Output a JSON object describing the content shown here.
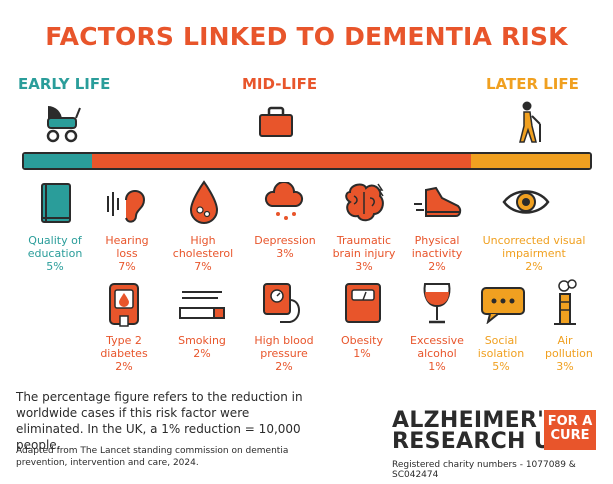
{
  "title": "FACTORS LINKED TO DEMENTIA RISK",
  "stages": {
    "early": "EARLY LIFE",
    "mid": "MID-LIFE",
    "late": "LATER LIFE"
  },
  "colors": {
    "teal": "#2a9d9a",
    "orange": "#e8552b",
    "amber": "#f0a020",
    "dark": "#2b2b2b"
  },
  "timeline": {
    "early_fraction": 0.12,
    "mid_fraction": 0.67,
    "late_fraction": 0.21
  },
  "factors_row1": [
    {
      "name": "Quality of education",
      "pct": "5%",
      "icon": "book-icon"
    },
    {
      "name": "Hearing loss",
      "pct": "7%",
      "icon": "ear-icon"
    },
    {
      "name": "High cholesterol",
      "pct": "7%",
      "icon": "blood-drop-icon"
    },
    {
      "name": "Depression",
      "pct": "3%",
      "icon": "rain-cloud-icon"
    },
    {
      "name": "Traumatic brain injury",
      "pct": "3%",
      "icon": "brain-icon"
    },
    {
      "name": "Physical inactivity",
      "pct": "2%",
      "icon": "shoe-icon"
    },
    {
      "name": "Uncorrected visual impairment",
      "pct": "2%",
      "icon": "eye-icon"
    }
  ],
  "factors_row2": [
    {
      "name": "Type 2 diabetes",
      "pct": "2%",
      "icon": "glucose-meter-icon"
    },
    {
      "name": "Smoking",
      "pct": "2%",
      "icon": "cigarette-icon"
    },
    {
      "name": "High blood pressure",
      "pct": "2%",
      "icon": "blood-pressure-icon"
    },
    {
      "name": "Obesity",
      "pct": "1%",
      "icon": "scale-icon"
    },
    {
      "name": "Excessive alcohol",
      "pct": "1%",
      "icon": "wine-glass-icon"
    },
    {
      "name": "Social isolation",
      "pct": "5%",
      "icon": "speech-bubble-icon"
    },
    {
      "name": "Air pollution",
      "pct": "3%",
      "icon": "factory-icon"
    }
  ],
  "footnote": "The percentage figure refers to the reduction in worldwide cases if this risk factor were eliminated. In the UK, a 1% reduction = 10,000 people.",
  "source": "Adapted from The Lancet standing commission on dementia prevention, intervention and care, 2024.",
  "brand": {
    "line1": "ALZHEIMER'S",
    "line2": "RESEARCH UK",
    "cure1": "FOR A",
    "cure2": "CURE"
  },
  "charity": "Registered charity numbers - 1077089 & SC042474"
}
